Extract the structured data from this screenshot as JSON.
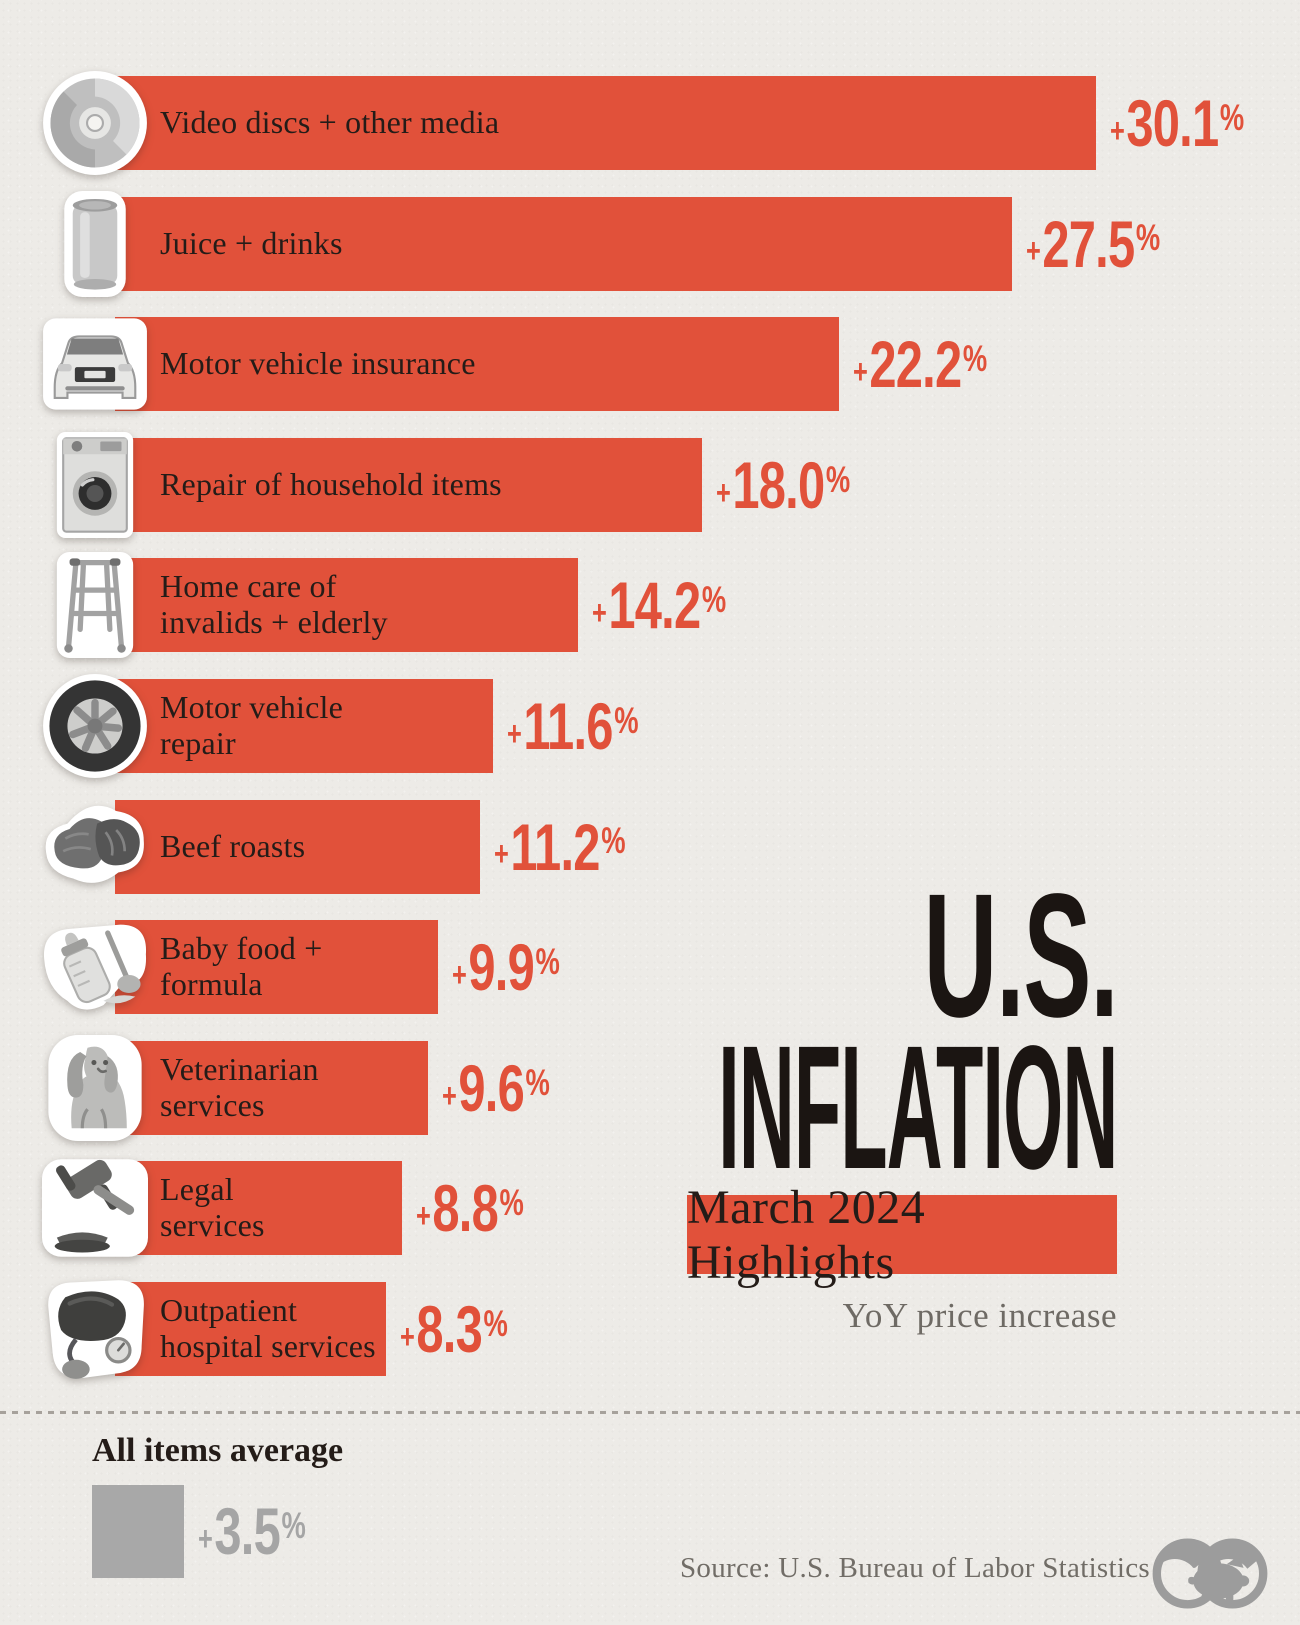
{
  "title": {
    "line1": "U.S.",
    "line2": "INFLATION",
    "subtitle": "March 2024 Highlights",
    "note": "YoY price increase"
  },
  "chart_data": {
    "type": "bar",
    "orientation": "horizontal",
    "units": "percent YoY price increase",
    "xlim": [
      0,
      30.1
    ],
    "items": [
      {
        "label": "Video discs + other media",
        "value": 30.1,
        "value_label": "+30.1%",
        "icon": "cd-icon"
      },
      {
        "label": "Juice + drinks",
        "value": 27.5,
        "value_label": "+27.5%",
        "icon": "can-icon"
      },
      {
        "label": "Motor vehicle insurance",
        "value": 22.2,
        "value_label": "+22.2%",
        "icon": "car-icon"
      },
      {
        "label": "Repair of household items",
        "value": 18.0,
        "value_label": "+18.0%",
        "icon": "washing-machine-icon"
      },
      {
        "label": "Home care of\ninvalids + elderly",
        "value": 14.2,
        "value_label": "+14.2%",
        "icon": "walker-icon"
      },
      {
        "label": "Motor vehicle\nrepair",
        "value": 11.6,
        "value_label": "+11.6%",
        "icon": "tire-icon"
      },
      {
        "label": "Beef roasts",
        "value": 11.2,
        "value_label": "+11.2%",
        "icon": "beef-icon"
      },
      {
        "label": "Baby food +\nformula",
        "value": 9.9,
        "value_label": "+9.9%",
        "icon": "baby-bottle-icon"
      },
      {
        "label": "Veterinarian\nservices",
        "value": 9.6,
        "value_label": "+9.6%",
        "icon": "dog-icon"
      },
      {
        "label": "Legal\nservices",
        "value": 8.8,
        "value_label": "+8.8%",
        "icon": "gavel-icon"
      },
      {
        "label": "Outpatient\nhospital services",
        "value": 8.3,
        "value_label": "+8.3%",
        "icon": "bp-monitor-icon"
      }
    ],
    "average": {
      "label": "All items average",
      "value": 3.5,
      "value_label": "+3.5%"
    }
  },
  "footer": {
    "source": "Source: U.S. Bureau of Labor Statistics",
    "logo": "visual-capitalist-logo"
  },
  "colors": {
    "bar": "#E1513A",
    "background": "#EDEBE7",
    "text_dark": "#241C18",
    "average_gray": "#A8A8A8",
    "note_gray": "#6E6A64"
  }
}
